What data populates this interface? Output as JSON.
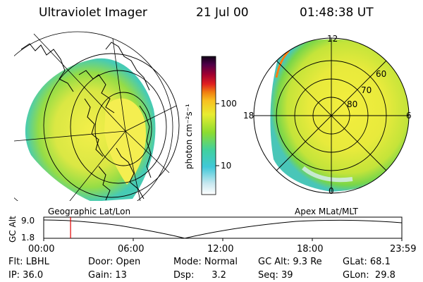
{
  "header": {
    "instrument": "Ultraviolet Imager",
    "date": "21 Jul 00",
    "time": "01:48:38 UT"
  },
  "colorbar": {
    "unit_label": "photon cm⁻²s⁻¹",
    "tick_100": "100",
    "tick_10": "10"
  },
  "apex_plot": {
    "mlt_labels": {
      "top": "12",
      "left": "18",
      "right": "6",
      "bottom": "0"
    },
    "lat_labels": [
      "60",
      "70",
      "80"
    ]
  },
  "timeline": {
    "left_label": "Geographic Lat/Lon",
    "right_label": "Apex MLat/MLT",
    "y_axis_label": "GC Alt",
    "y_ticks": [
      "9.0",
      "1.8"
    ],
    "x_ticks": [
      "00:00",
      "06:00",
      "12:00",
      "18:00",
      "23:59"
    ],
    "current_time_fraction": 0.075
  },
  "status": {
    "row1": {
      "flt": "Flt: LBHL",
      "door": "Door: Open",
      "mode": "Mode: Normal",
      "gc_alt": "GC Alt: 9.3 Re",
      "glat": "GLat:  68.1"
    },
    "row2": {
      "ip": "IP: 36.0",
      "gain": "Gain: 13",
      "dsp": "Dsp:      3.2",
      "seq": "Seq: 39",
      "glon": "GLon:  29.8"
    }
  },
  "colors": {
    "background": "#ffffff",
    "foreground": "#000000",
    "current_time_marker": "#e00000"
  }
}
